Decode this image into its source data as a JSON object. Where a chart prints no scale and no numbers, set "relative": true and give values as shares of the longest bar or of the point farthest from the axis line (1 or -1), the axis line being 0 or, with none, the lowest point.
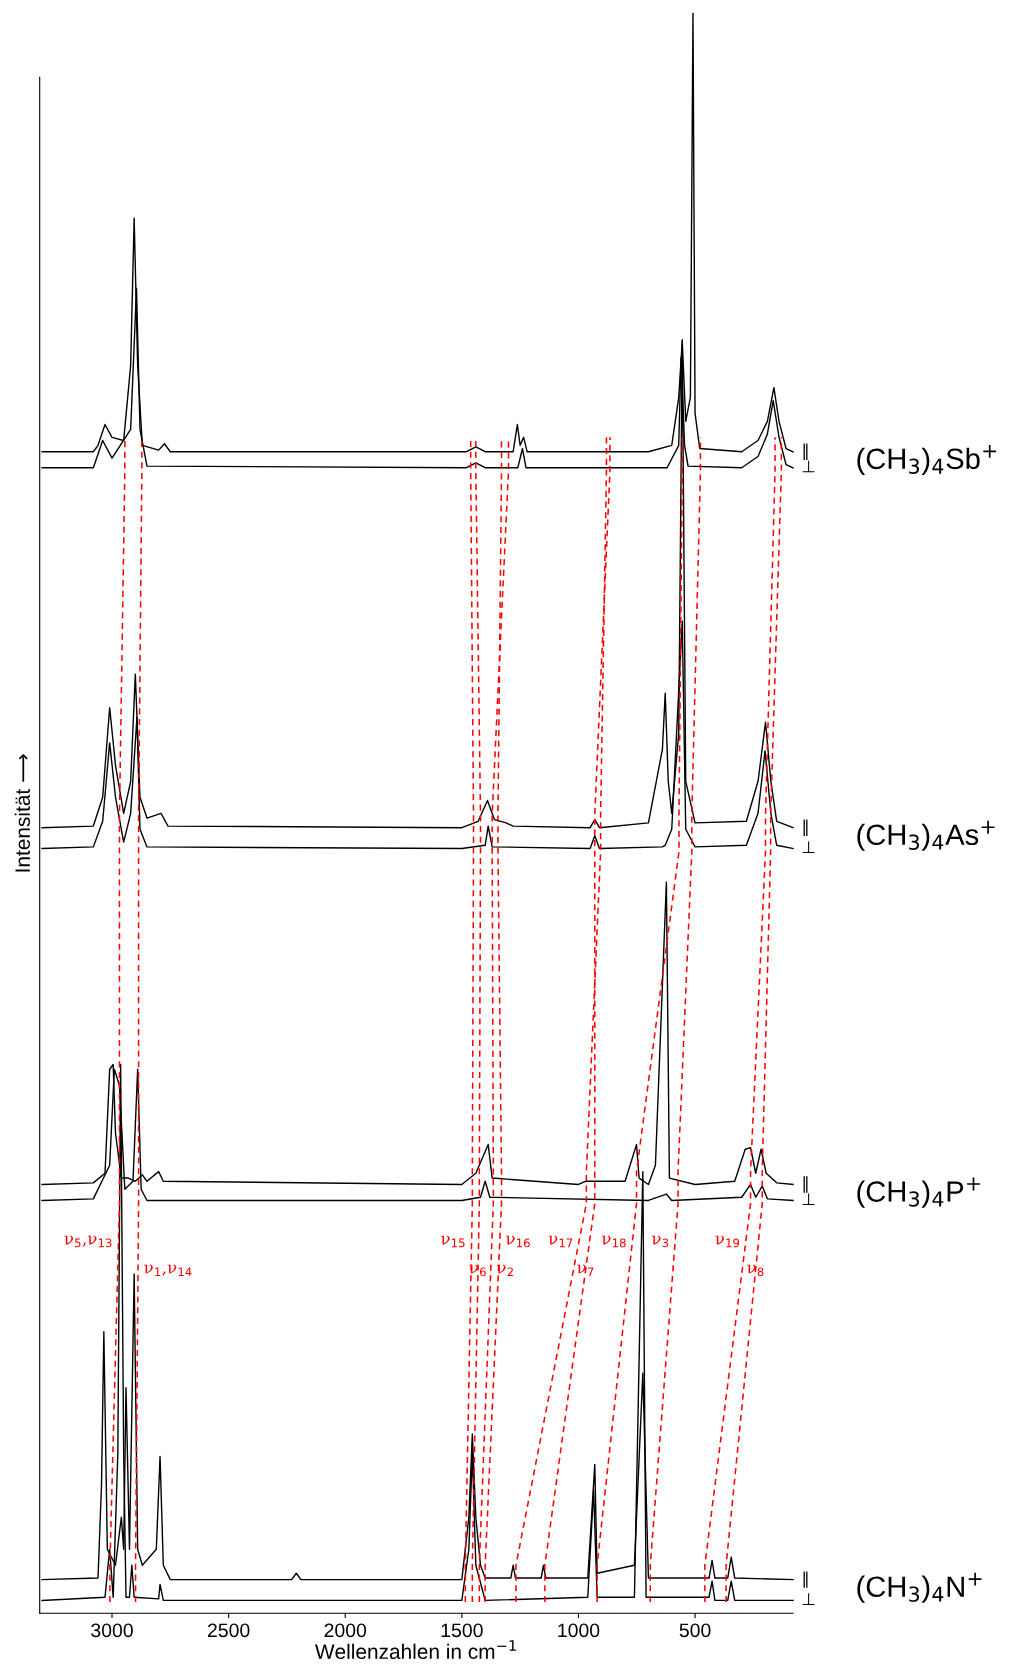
{
  "chart_data": {
    "type": "line",
    "relative": true,
    "xlabel": "Wellenzahlen in cm$^{−1}$",
    "ylabel": "Intensität ⟶",
    "xlim": [
      3310,
      80
    ],
    "xticks": [
      3000,
      2500,
      2000,
      1500,
      1000,
      500
    ],
    "marker": "none",
    "line_style": "solid",
    "series": [
      {
        "name": "(CH$_{3}$)$_{4}$Sb$^{+}$",
        "color": "#000000",
        "x": [
          3300,
          3080,
          3060,
          3030,
          3000,
          2950,
          2920,
          2905,
          2890,
          2870,
          2800,
          2775,
          2750,
          1480,
          1440,
          1400,
          1280,
          1262,
          1250,
          1235,
          1220,
          700,
          600,
          570,
          555,
          540,
          520,
          509,
          500,
          480,
          300,
          230,
          190,
          162,
          140,
          110,
          80
        ],
        "values": [
          0.726,
          0.726,
          0.73,
          0.743,
          0.735,
          0.733,
          0.78,
          0.872,
          0.78,
          0.73,
          0.727,
          0.731,
          0.726,
          0.726,
          0.729,
          0.726,
          0.726,
          0.743,
          0.73,
          0.735,
          0.726,
          0.726,
          0.73,
          0.76,
          0.795,
          0.745,
          0.76,
          1.0,
          0.75,
          0.728,
          0.726,
          0.733,
          0.745,
          0.766,
          0.745,
          0.728,
          0.726
        ]
      },
      {
        "color": "#000000",
        "x": [
          3300,
          3080,
          3040,
          3000,
          2920,
          2895,
          2880,
          2850,
          1480,
          1440,
          1400,
          1260,
          1240,
          1225,
          620,
          570,
          560,
          545,
          530,
          300,
          230,
          190,
          165,
          140,
          110,
          80
        ],
        "values": [
          0.716,
          0.716,
          0.733,
          0.722,
          0.74,
          0.828,
          0.74,
          0.717,
          0.716,
          0.719,
          0.716,
          0.716,
          0.728,
          0.716,
          0.716,
          0.73,
          0.785,
          0.73,
          0.717,
          0.716,
          0.723,
          0.737,
          0.758,
          0.735,
          0.718,
          0.716
        ]
      },
      {
        "name": "(CH$_{3}$)$_{4}$As$^{+}$",
        "color": "#000000",
        "x": [
          3300,
          3080,
          3040,
          3010,
          2985,
          2950,
          2920,
          2900,
          2880,
          2850,
          2790,
          2760,
          1500,
          1430,
          1390,
          1360,
          1310,
          1280,
          950,
          930,
          910,
          700,
          640,
          628,
          615,
          600,
          570,
          555,
          540,
          500,
          280,
          230,
          198,
          175,
          150,
          80
        ],
        "values": [
          0.491,
          0.492,
          0.51,
          0.566,
          0.53,
          0.5,
          0.52,
          0.587,
          0.51,
          0.497,
          0.5,
          0.492,
          0.491,
          0.495,
          0.508,
          0.496,
          0.494,
          0.492,
          0.491,
          0.496,
          0.491,
          0.494,
          0.54,
          0.575,
          0.52,
          0.5,
          0.55,
          0.796,
          0.52,
          0.494,
          0.495,
          0.52,
          0.557,
          0.52,
          0.495,
          0.491
        ]
      },
      {
        "color": "#000000",
        "x": [
          3300,
          3080,
          3040,
          3010,
          2985,
          2950,
          2920,
          2893,
          2880,
          2850,
          1500,
          1400,
          1387,
          1370,
          950,
          930,
          910,
          640,
          628,
          600,
          555,
          540,
          500,
          280,
          230,
          200,
          175,
          150,
          80
        ],
        "values": [
          0.478,
          0.479,
          0.495,
          0.544,
          0.51,
          0.482,
          0.5,
          0.56,
          0.49,
          0.479,
          0.478,
          0.48,
          0.492,
          0.479,
          0.478,
          0.486,
          0.478,
          0.479,
          0.48,
          0.49,
          0.62,
          0.49,
          0.479,
          0.48,
          0.5,
          0.539,
          0.5,
          0.48,
          0.478
        ]
      },
      {
        "name": "(CH$_{3}$)$_{4}$P$^{+}$",
        "color": "#000000",
        "x": [
          3300,
          3080,
          3030,
          3010,
          2995,
          2985,
          2960,
          2930,
          2900,
          2870,
          2850,
          2800,
          2780,
          1500,
          1440,
          1387,
          1370,
          1000,
          970,
          800,
          751,
          740,
          700,
          670,
          623,
          610,
          500,
          330,
          285,
          262,
          240,
          217,
          195,
          150,
          80
        ],
        "values": [
          0.268,
          0.269,
          0.275,
          0.34,
          0.343,
          0.3,
          0.272,
          0.272,
          0.27,
          0.274,
          0.27,
          0.276,
          0.27,
          0.268,
          0.275,
          0.293,
          0.272,
          0.268,
          0.27,
          0.27,
          0.293,
          0.272,
          0.268,
          0.28,
          0.457,
          0.272,
          0.268,
          0.27,
          0.29,
          0.291,
          0.275,
          0.29,
          0.275,
          0.269,
          0.268
        ]
      },
      {
        "color": "#000000",
        "x": [
          3300,
          3080,
          3010,
          2990,
          2968,
          2945,
          2910,
          2890,
          2875,
          2850,
          1500,
          1420,
          1400,
          1380,
          700,
          623,
          600,
          300,
          262,
          240,
          212,
          190,
          80
        ],
        "values": [
          0.258,
          0.259,
          0.28,
          0.34,
          0.33,
          0.265,
          0.27,
          0.34,
          0.265,
          0.258,
          0.258,
          0.26,
          0.27,
          0.26,
          0.258,
          0.262,
          0.258,
          0.26,
          0.268,
          0.26,
          0.267,
          0.259,
          0.258
        ]
      },
      {
        "name": "(CH$_{3}$)$_{4}$N$^{+}$",
        "color": "#000000",
        "x": [
          3300,
          3060,
          3045,
          3035,
          3020,
          2985,
          2960,
          2950,
          2940,
          2925,
          2905,
          2890,
          2870,
          2810,
          2794,
          2780,
          2750,
          2230,
          2210,
          2190,
          1500,
          1470,
          1455,
          1440,
          1420,
          1400,
          1290,
          1280,
          1270,
          1160,
          1150,
          1140,
          960,
          930,
          920,
          760,
          724,
          700,
          440,
          427,
          415,
          360,
          345,
          330,
          80
        ],
        "values": [
          0.021,
          0.022,
          0.08,
          0.176,
          0.04,
          0.03,
          0.06,
          0.04,
          0.141,
          0.04,
          0.212,
          0.04,
          0.03,
          0.04,
          0.098,
          0.03,
          0.021,
          0.021,
          0.025,
          0.021,
          0.021,
          0.06,
          0.112,
          0.06,
          0.03,
          0.022,
          0.022,
          0.03,
          0.022,
          0.022,
          0.03,
          0.022,
          0.022,
          0.093,
          0.025,
          0.03,
          0.15,
          0.022,
          0.022,
          0.033,
          0.022,
          0.022,
          0.035,
          0.022,
          0.021
        ]
      },
      {
        "color": "#000000",
        "x": [
          3300,
          3030,
          3010,
          2995,
          2975,
          2963,
          2950,
          2940,
          2925,
          2915,
          2905,
          2800,
          2794,
          2780,
          1500,
          1470,
          1455,
          1440,
          1400,
          960,
          935,
          920,
          760,
          724,
          710,
          440,
          427,
          415,
          360,
          345,
          330,
          80
        ],
        "values": [
          0.008,
          0.01,
          0.04,
          0.01,
          0.1,
          0.343,
          0.1,
          0.01,
          0.01,
          0.03,
          0.01,
          0.009,
          0.018,
          0.008,
          0.008,
          0.04,
          0.1,
          0.03,
          0.008,
          0.01,
          0.077,
          0.01,
          0.01,
          0.276,
          0.01,
          0.01,
          0.02,
          0.008,
          0.008,
          0.02,
          0.008,
          0.008
        ]
      },
      {
        "name": "ν$_{5}$,ν$_{13}$",
        "color": "#ff0000",
        "line_style": "dashed",
        "x": [
          3009,
          3009,
          2968,
          2968,
          2968,
          2968,
          2945,
          2945
        ],
        "values": [
          0.007,
          0.03,
          0.256,
          0.276,
          0.476,
          0.499,
          0.714,
          0.735
        ]
      },
      {
        "name": "ν$_{1}$,ν$_{14}$",
        "color": "#ff0000",
        "line_style": "dashed",
        "x": [
          2899,
          2899,
          2886,
          2886,
          2886,
          2886,
          2872,
          2872
        ],
        "values": [
          0.007,
          0.03,
          0.256,
          0.276,
          0.476,
          0.499,
          0.714,
          0.735
        ]
      },
      {
        "name": "ν$_{15}$",
        "color": "#ff0000",
        "line_style": "dashed",
        "x": [
          1485,
          1485,
          1455,
          1455,
          1450,
          1450,
          1462,
          1462
        ],
        "values": [
          0.007,
          0.03,
          0.256,
          0.276,
          0.476,
          0.499,
          0.714,
          0.735
        ]
      },
      {
        "name": "ν$_{6}$",
        "color": "#ff0000",
        "line_style": "dashed",
        "x": [
          1455,
          1455,
          1425,
          1425,
          1420,
          1420,
          1440,
          1440
        ],
        "values": [
          0.007,
          0.03,
          0.256,
          0.276,
          0.476,
          0.499,
          0.714,
          0.735
        ]
      },
      {
        "name": "ν$_{16}$",
        "color": "#ff0000",
        "line_style": "dashed",
        "x": [
          1400,
          1400,
          1330,
          1330,
          1345,
          1345,
          1330,
          1330
        ],
        "values": [
          0.007,
          0.03,
          0.256,
          0.276,
          0.476,
          0.499,
          0.714,
          0.735
        ]
      },
      {
        "name": "ν$_{2}$",
        "color": "#ff0000",
        "line_style": "dashed",
        "x": [
          1425,
          1425,
          1365,
          1365,
          1370,
          1370,
          1300,
          1300
        ],
        "values": [
          0.007,
          0.03,
          0.256,
          0.276,
          0.476,
          0.499,
          0.714,
          0.735
        ]
      },
      {
        "name": "ν$_{17}$",
        "color": "#ff0000",
        "line_style": "dashed",
        "x": [
          1268,
          1268,
          966,
          966,
          905,
          905,
          880,
          880
        ],
        "values": [
          0.007,
          0.03,
          0.256,
          0.276,
          0.476,
          0.499,
          0.714,
          0.735
        ]
      },
      {
        "name": "ν$_{7}$",
        "color": "#ff0000",
        "line_style": "dashed",
        "x": [
          1144,
          1144,
          930,
          930,
          930,
          930,
          865,
          865
        ],
        "values": [
          0.007,
          0.03,
          0.256,
          0.276,
          0.476,
          0.499,
          0.714,
          0.735
        ]
      },
      {
        "name": "ν$_{18}$",
        "color": "#ff0000",
        "line_style": "dashed",
        "x": [
          920,
          920,
          751,
          751,
          569,
          569,
          555,
          555
        ],
        "values": [
          0.007,
          0.03,
          0.256,
          0.276,
          0.476,
          0.499,
          0.714,
          0.735
        ]
      },
      {
        "name": "ν$_{3}$",
        "color": "#ff0000",
        "line_style": "dashed",
        "x": [
          692,
          692,
          573,
          573,
          514,
          514,
          477,
          477
        ],
        "values": [
          0.007,
          0.03,
          0.256,
          0.276,
          0.476,
          0.499,
          0.714,
          0.735
        ]
      },
      {
        "name": "ν$_{19}$",
        "color": "#ff0000",
        "line_style": "dashed",
        "x": [
          458,
          458,
          262,
          262,
          198,
          198,
          157,
          157
        ],
        "values": [
          0.007,
          0.03,
          0.256,
          0.276,
          0.476,
          0.499,
          0.714,
          0.735
        ]
      },
      {
        "name": "ν$_{8}$",
        "color": "#ff0000",
        "line_style": "dashed",
        "x": [
          367,
          367,
          212,
          212,
          176,
          176,
          130,
          130
        ],
        "values": [
          0.007,
          0.03,
          0.256,
          0.276,
          0.476,
          0.499,
          0.714,
          0.735
        ]
      }
    ],
    "annotations": [
      "∥",
      "⊥",
      "∥",
      "⊥",
      "∥",
      "⊥",
      "∥",
      "⊥"
    ]
  }
}
